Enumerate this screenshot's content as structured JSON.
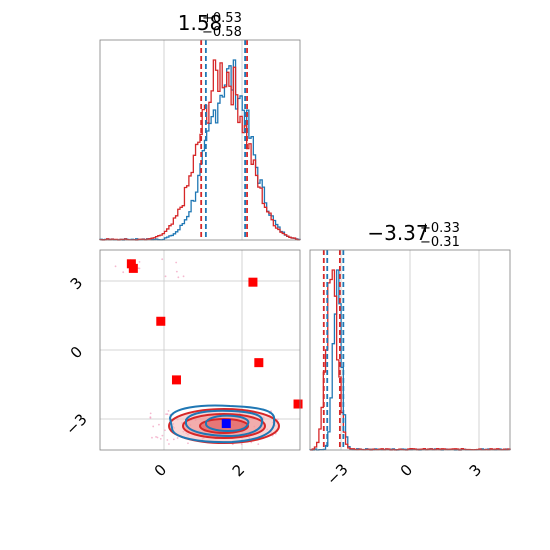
{
  "chart_data": {
    "type": "corner",
    "colors": {
      "red": "#d62728",
      "blue": "#1f77b4",
      "red_marker": "#ff0000",
      "blue_marker": "#0000ff",
      "points": "#f2a8c4"
    },
    "grid": true,
    "panels": [
      {
        "id": "hist-param1",
        "type": "histogram",
        "title": {
          "median": "1.58",
          "plus": "+0.53",
          "minus": "−0.58"
        },
        "xlim": [
          -1.6,
          3.5
        ],
        "x_gridlines": [
          0,
          2
        ],
        "quantiles": {
          "blue": [
            1.1,
            2.1
          ],
          "red": [
            0.98,
            2.15
          ]
        },
        "series": [
          {
            "name": "",
            "color": "blue",
            "center": 1.7,
            "sigma": 0.55
          },
          {
            "name": "",
            "color": "red",
            "center": 1.55,
            "sigma": 0.6
          }
        ]
      },
      {
        "id": "hist-param2",
        "type": "histogram",
        "title": {
          "median": "−3.37",
          "plus": "+0.33",
          "minus": "−0.31"
        },
        "xlim": [
          -4.3,
          4.4
        ],
        "x_gridlines": [
          -3,
          0,
          3
        ],
        "xticks": [
          "−3",
          "0",
          "3"
        ],
        "quantiles": {
          "blue": [
            -3.55,
            -2.85
          ],
          "red": [
            -3.7,
            -3.0
          ]
        },
        "series": [
          {
            "name": "",
            "color": "blue",
            "center": -3.1,
            "sigma": 0.18
          },
          {
            "name": "",
            "color": "red",
            "center": -3.35,
            "sigma": 0.25
          }
        ]
      },
      {
        "id": "scatter-2d",
        "type": "contour-scatter",
        "xlim": [
          -1.6,
          3.5
        ],
        "ylim": [
          -4.3,
          4.4
        ],
        "xticks": [
          "0",
          "2"
        ],
        "yticks": [
          "3",
          "0",
          "−3"
        ],
        "red_points": [
          {
            "x": -0.8,
            "y": 3.8
          },
          {
            "x": -0.75,
            "y": 3.6
          },
          {
            "x": -0.05,
            "y": 1.3
          },
          {
            "x": 2.3,
            "y": 3.0
          },
          {
            "x": 0.35,
            "y": -1.25
          },
          {
            "x": 2.45,
            "y": -0.5
          },
          {
            "x": 3.45,
            "y": -2.3
          }
        ],
        "blue_point": {
          "x": 1.62,
          "y": -3.15
        }
      }
    ]
  }
}
